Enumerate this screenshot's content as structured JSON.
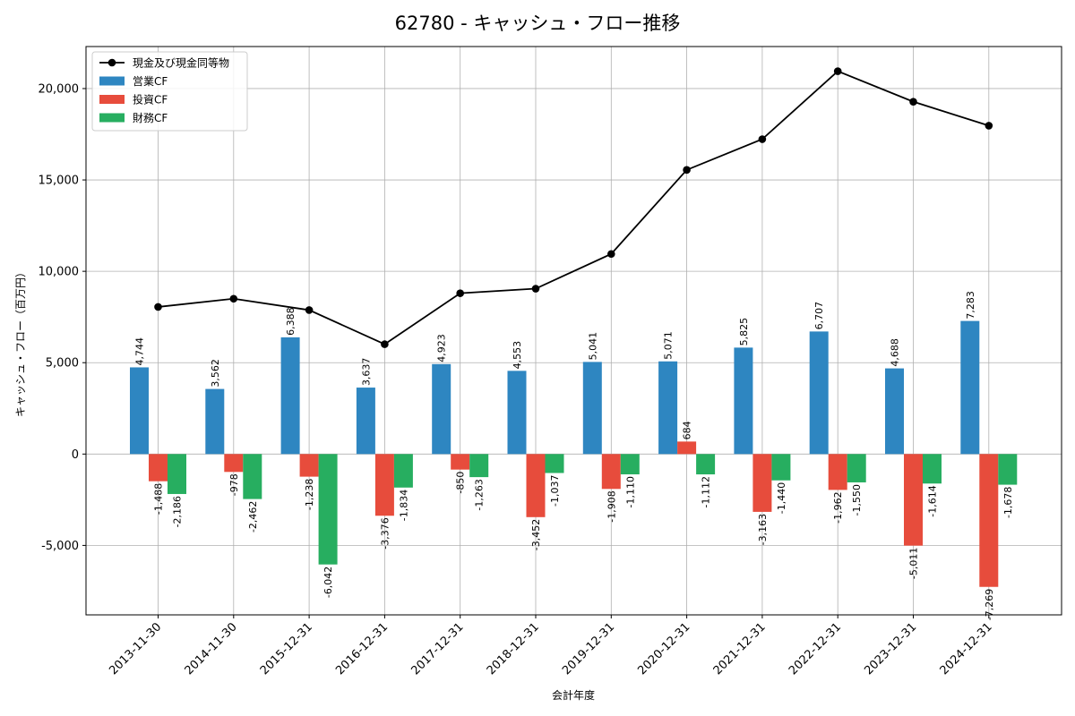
{
  "chart_data": {
    "type": "bar",
    "title": "62780 - キャッシュ・フロー推移",
    "xlabel": "会計年度",
    "ylabel": "キャッシュ・フロー（百万円）",
    "categories": [
      "2013-11-30",
      "2014-11-30",
      "2015-12-31",
      "2016-12-31",
      "2017-12-31",
      "2018-12-31",
      "2019-12-31",
      "2020-12-31",
      "2021-12-31",
      "2022-12-31",
      "2023-12-31",
      "2024-12-31"
    ],
    "ylim": [
      -8800,
      22300
    ],
    "yticks": [
      -5000,
      0,
      5000,
      10000,
      15000,
      20000
    ],
    "ytick_labels": [
      "-5,000",
      "0",
      "5,000",
      "10,000",
      "15,000",
      "20,000"
    ],
    "grid": true,
    "legend_position": "top-left",
    "series": [
      {
        "name": "営業CF",
        "kind": "bar",
        "color": "#2e86c1",
        "values": [
          4744,
          3562,
          6388,
          3637,
          4923,
          4553,
          5041,
          5071,
          5825,
          6707,
          4688,
          7283
        ],
        "labels": [
          "4,744",
          "3,562",
          "6,388",
          "3,637",
          "4,923",
          "4,553",
          "5,041",
          "5,071",
          "5,825",
          "6,707",
          "4,688",
          "7,283"
        ]
      },
      {
        "name": "投資CF",
        "kind": "bar",
        "color": "#e74c3c",
        "values": [
          -1488,
          -978,
          -1238,
          -3376,
          -850,
          -3452,
          -1908,
          684,
          -3163,
          -1962,
          -5011,
          -7269
        ],
        "labels": [
          "-1,488",
          "-978",
          "-1,238",
          "-3,376",
          "-850",
          "-3,452",
          "-1,908",
          "684",
          "-3,163",
          "-1,962",
          "-5,011",
          "-7,269"
        ]
      },
      {
        "name": "財務CF",
        "kind": "bar",
        "color": "#27ae60",
        "values": [
          -2186,
          -2462,
          -6042,
          -1834,
          -1263,
          -1037,
          -1110,
          -1112,
          -1440,
          -1550,
          -1614,
          -1678
        ],
        "labels": [
          "-2,186",
          "-2,462",
          "-6,042",
          "-1,834",
          "-1,263",
          "-1,037",
          "-1,110",
          "-1,112",
          "-1,440",
          "-1,550",
          "-1,614",
          "-1,678"
        ]
      },
      {
        "name": "現金及び現金同等物",
        "kind": "line",
        "color": "#000000",
        "values": [
          8050,
          8500,
          7880,
          6010,
          8800,
          9050,
          10950,
          15550,
          17230,
          20950,
          19280,
          17970
        ]
      }
    ]
  }
}
